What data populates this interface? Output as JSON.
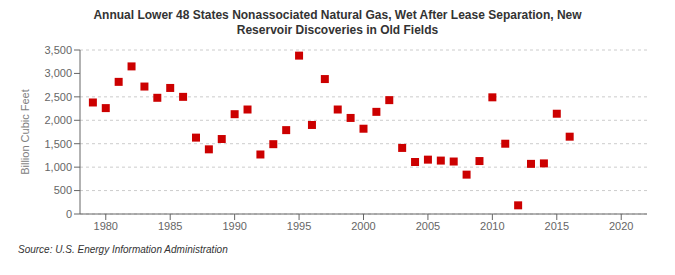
{
  "chart_data": {
    "type": "scatter",
    "title": "Annual Lower 48 States Nonassociated Natural Gas, Wet After Lease Separation, New\nReservoir Discoveries in Old Fields",
    "ylabel": "Billion Cubic Feet",
    "source": "Source: U.S. Energy Information Administration",
    "color": "#cc0000",
    "marker": "square",
    "grid": "y",
    "xlim": [
      1978,
      2022
    ],
    "ylim": [
      0,
      3500
    ],
    "xticks": [
      1980,
      1985,
      1990,
      1995,
      2000,
      2005,
      2010,
      2015,
      2020
    ],
    "yticks": [
      0,
      500,
      {
        "value": 1000,
        "label": "1,000"
      },
      {
        "value": 1500,
        "label": "1,500"
      },
      {
        "value": 2000,
        "label": "2,000"
      },
      {
        "value": 2500,
        "label": "2,500"
      },
      {
        "value": 3000,
        "label": "3,000"
      },
      {
        "value": 3500,
        "label": "3,500"
      }
    ],
    "x": [
      1979,
      1980,
      1981,
      1982,
      1983,
      1984,
      1985,
      1986,
      1987,
      1988,
      1989,
      1990,
      1991,
      1992,
      1993,
      1994,
      1995,
      1996,
      1997,
      1998,
      1999,
      2000,
      2001,
      2002,
      2003,
      2004,
      2005,
      2006,
      2007,
      2008,
      2009,
      2010,
      2011,
      2012,
      2013,
      2014,
      2015,
      2016
    ],
    "values": [
      2380,
      2260,
      2820,
      3150,
      2720,
      2480,
      2690,
      2500,
      1630,
      1380,
      1600,
      2130,
      2230,
      1270,
      1490,
      1790,
      3380,
      1900,
      2880,
      2230,
      2050,
      1820,
      2180,
      2430,
      1410,
      1110,
      1160,
      1140,
      1120,
      840,
      1130,
      2490,
      1500,
      185,
      1070,
      1080,
      2140,
      1650
    ]
  }
}
